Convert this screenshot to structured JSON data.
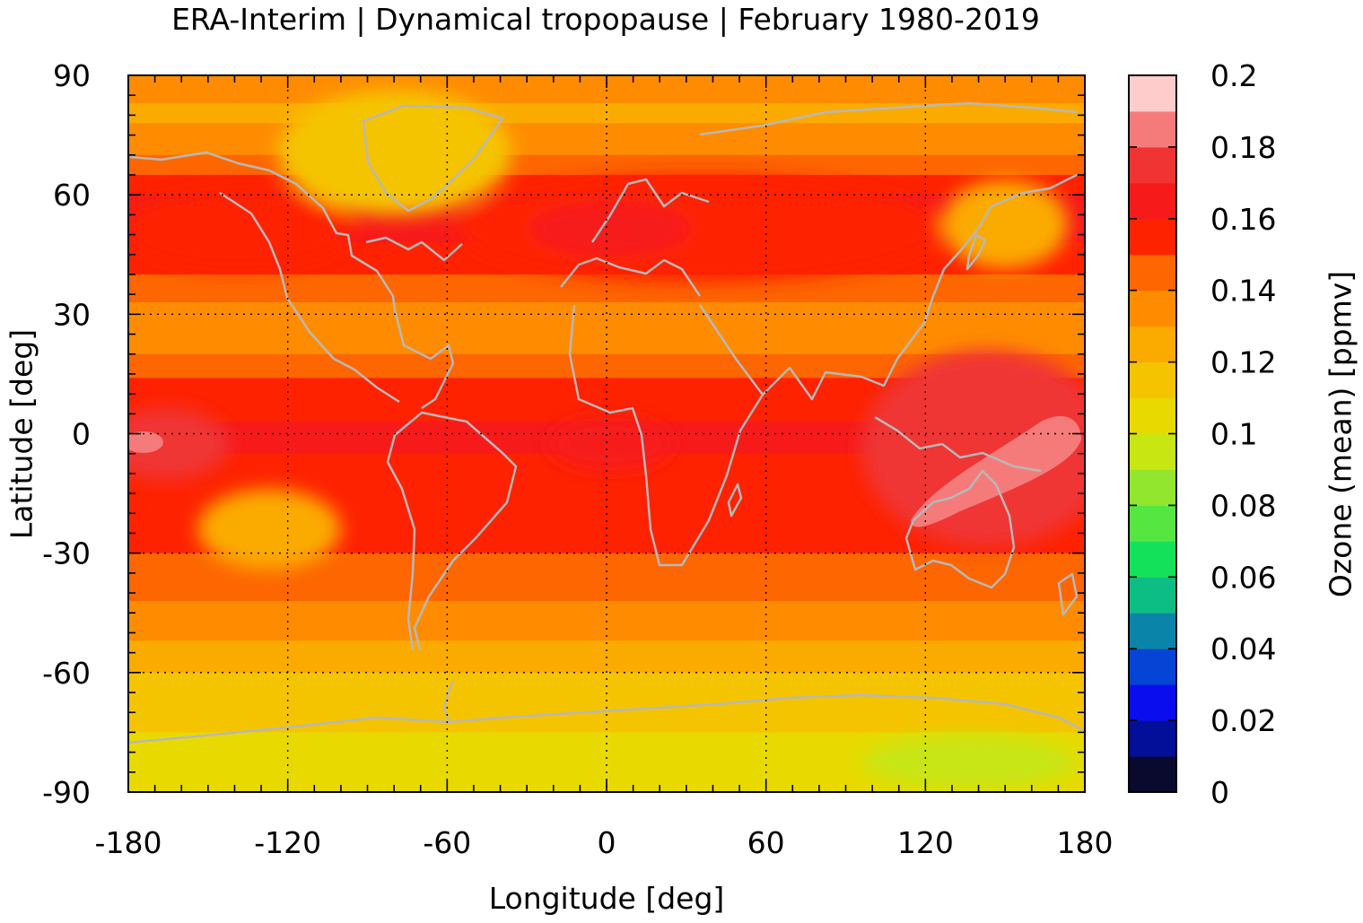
{
  "chart_data": {
    "type": "heatmap",
    "title": "ERA-Interim | Dynamical tropopause | February 1980-2019",
    "xlabel": "Longitude [deg]",
    "ylabel": "Latitude [deg]",
    "colorbar_label": "Ozone (mean) [ppmv]",
    "xlim": [
      -180,
      180
    ],
    "ylim": [
      -90,
      90
    ],
    "xticks": [
      "-180",
      "-120",
      "-60",
      "0",
      "60",
      "120",
      "180"
    ],
    "yticks": [
      "90",
      "60",
      "30",
      "0",
      "-30",
      "-60",
      "-90"
    ],
    "x_tick_values": [
      -180,
      -120,
      -60,
      0,
      60,
      120,
      180
    ],
    "y_tick_values": [
      90,
      60,
      30,
      0,
      -30,
      -60,
      -90
    ],
    "grid": true,
    "colorbar": {
      "range": [
        0,
        0.2
      ],
      "tick_labels": [
        "0.2",
        "0.18",
        "0.16",
        "0.14",
        "0.12",
        "0.1",
        "0.08",
        "0.06",
        "0.04",
        "0.02",
        "0"
      ],
      "tick_values": [
        0.2,
        0.18,
        0.16,
        0.14,
        0.12,
        0.1,
        0.08,
        0.06,
        0.04,
        0.02,
        0
      ],
      "levels": [
        0,
        0.01,
        0.02,
        0.03,
        0.04,
        0.05,
        0.06,
        0.07,
        0.08,
        0.09,
        0.1,
        0.11,
        0.12,
        0.13,
        0.14,
        0.15,
        0.16,
        0.17,
        0.18,
        0.19,
        0.2
      ],
      "colors": [
        "#0a0a2e",
        "#040f99",
        "#0a0dee",
        "#0544d4",
        "#0a84a8",
        "#0cbd84",
        "#14e15a",
        "#55e642",
        "#92e62e",
        "#c8e612",
        "#e8da00",
        "#f5c400",
        "#fbab00",
        "#ff8c00",
        "#fd6600",
        "#fe2200",
        "#f71a1a",
        "#f03434",
        "#f57b7b",
        "#ffcccc"
      ]
    },
    "zonal_mean_profile": {
      "latitude": [
        90,
        80,
        70,
        60,
        50,
        40,
        30,
        20,
        10,
        0,
        -10,
        -20,
        -30,
        -40,
        -50,
        -60,
        -70,
        -80,
        -90
      ],
      "ozone_ppmv": [
        0.135,
        0.128,
        0.14,
        0.16,
        0.162,
        0.15,
        0.135,
        0.14,
        0.156,
        0.162,
        0.158,
        0.154,
        0.15,
        0.142,
        0.132,
        0.12,
        0.112,
        0.108,
        0.1
      ]
    }
  }
}
